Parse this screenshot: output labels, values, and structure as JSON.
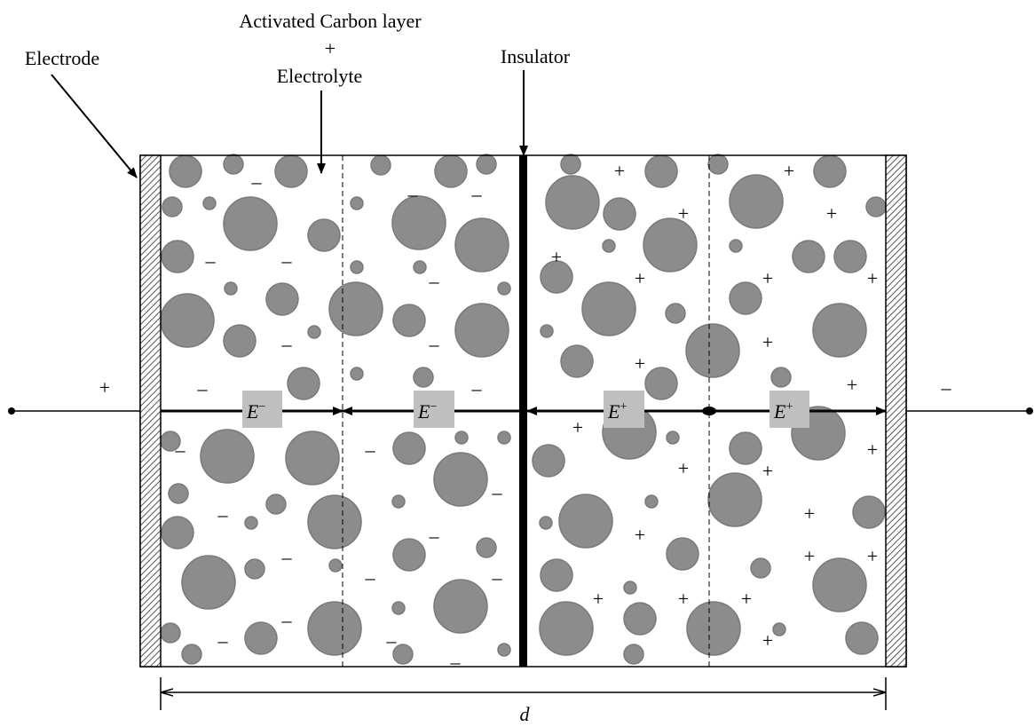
{
  "header": {
    "electrode": "Electrode",
    "layer": {
      "line1": "Activated Carbon layer",
      "line2": "+",
      "line3": "Electrolyte"
    },
    "insulator": "Insulator"
  },
  "terminals": {
    "left": "+",
    "right": "–"
  },
  "field": {
    "symbol": "E",
    "negative": "−",
    "positive": "+"
  },
  "charges": {
    "negative": "–",
    "positive": "+"
  },
  "dimension": "d"
}
